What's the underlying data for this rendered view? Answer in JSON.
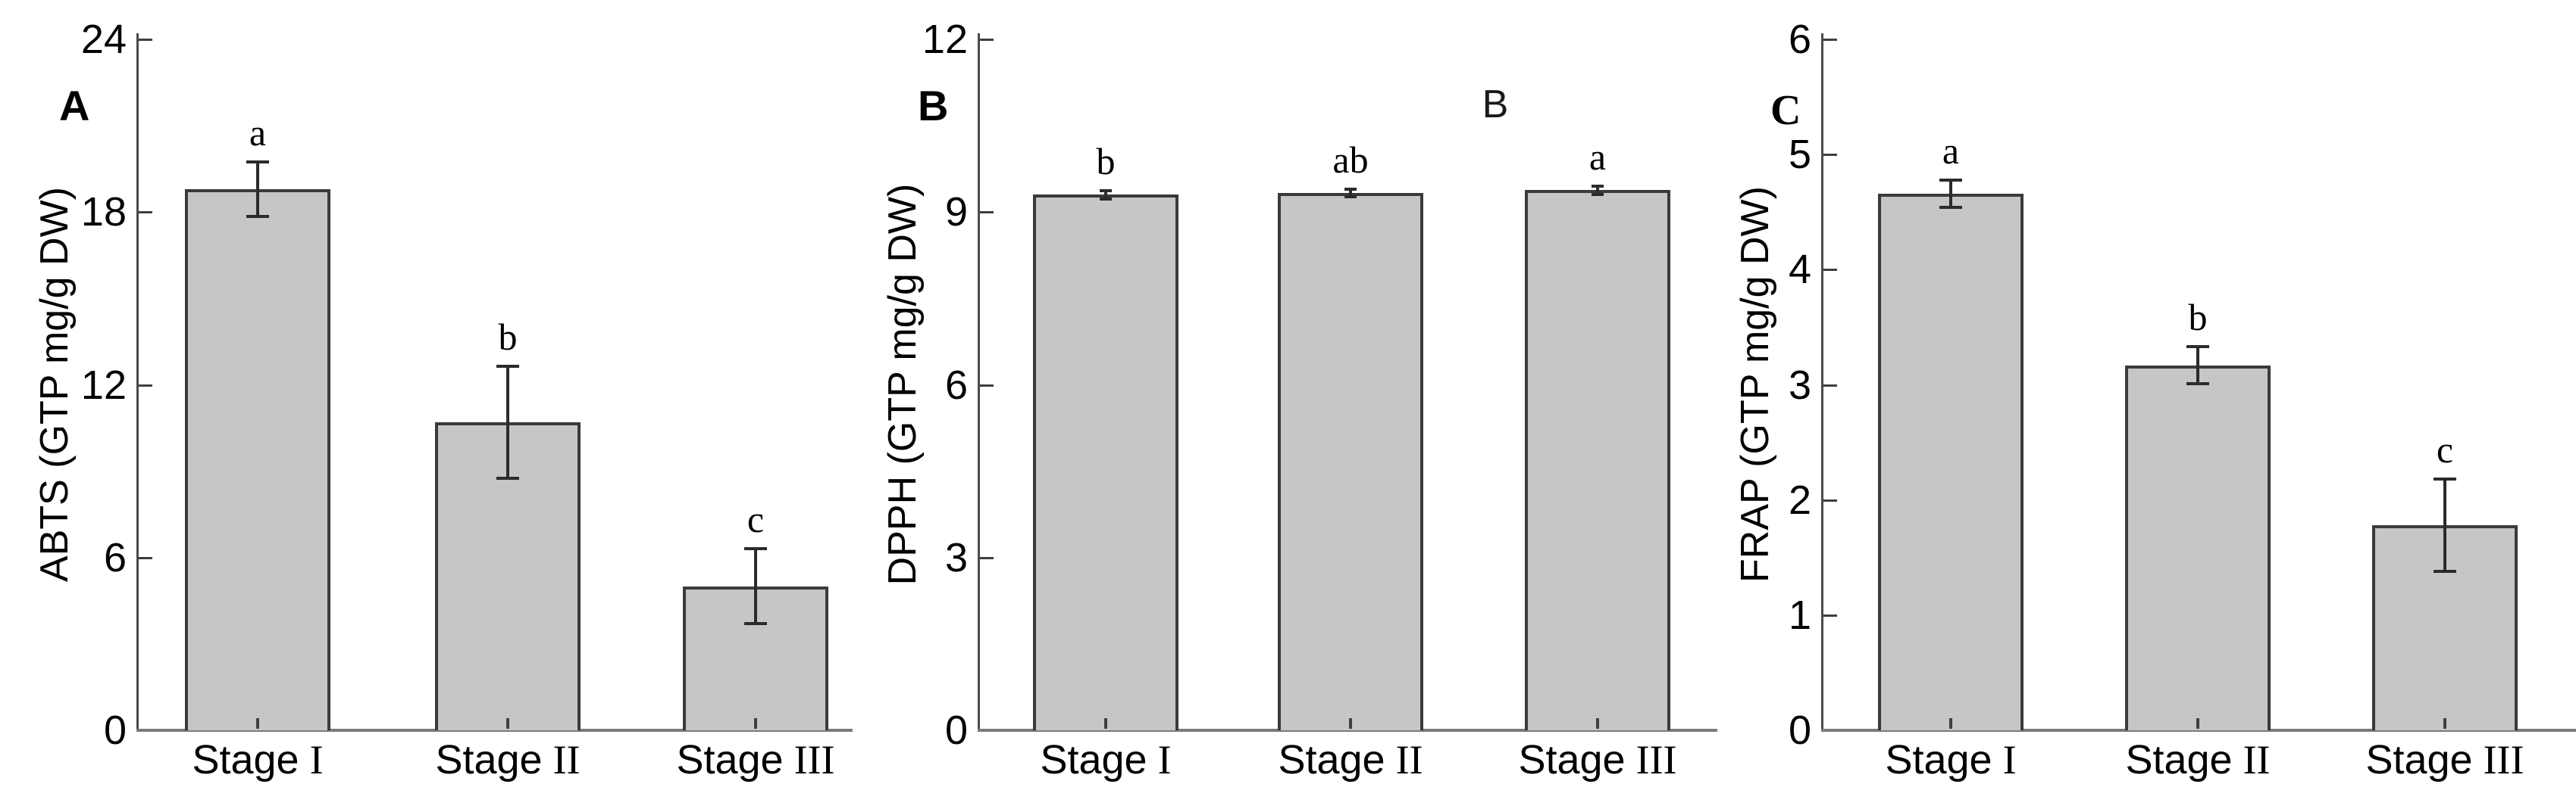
{
  "figure": {
    "background": "#ffffff",
    "bar_fill": "#c6c6c6",
    "bar_border": "#3a3a3a",
    "y_axis_color": "#4a4a4a",
    "baseline_color": "#7a7a7a",
    "error_bar_color": "#2b2b2b",
    "tick_color": "#3f3f3f",
    "text_color": "#000000"
  },
  "chart_data": [
    {
      "type": "bar",
      "panel_label": "A",
      "title": "",
      "xlabel": "",
      "ylabel": "ABTS (GTP mg/g DW)",
      "categories": [
        {
          "prefix": "Stage",
          "numeral": "I"
        },
        {
          "prefix": "Stage",
          "numeral": "II"
        },
        {
          "prefix": "Stage",
          "numeral": "III"
        }
      ],
      "values": [
        18.8,
        10.7,
        5.0
      ],
      "errors": [
        0.95,
        1.95,
        1.3
      ],
      "sig_letters": [
        "a",
        "b",
        "c"
      ],
      "ylim": [
        0,
        24
      ],
      "yticks": [
        0,
        6,
        12,
        18,
        24
      ],
      "grid": false,
      "legend": "none"
    },
    {
      "type": "bar",
      "panel_label": "B",
      "extra_annotation": "B",
      "title": "",
      "xlabel": "",
      "ylabel": "DPPH (GTP mg/g DW)",
      "categories": [
        {
          "prefix": "Stage",
          "numeral": "I"
        },
        {
          "prefix": "Stage",
          "numeral": "II"
        },
        {
          "prefix": "Stage",
          "numeral": "III"
        }
      ],
      "values": [
        9.3,
        9.33,
        9.38
      ],
      "errors": [
        0.07,
        0.07,
        0.07
      ],
      "sig_letters": [
        "b",
        "ab",
        "a"
      ],
      "ylim": [
        0,
        12
      ],
      "yticks": [
        0,
        3,
        6,
        9,
        12
      ],
      "grid": false,
      "legend": "none"
    },
    {
      "type": "bar",
      "panel_label": "C",
      "title": "",
      "xlabel": "",
      "ylabel": "FRAP (GTP mg/g DW)",
      "categories": [
        {
          "prefix": "Stage",
          "numeral": "I"
        },
        {
          "prefix": "Stage",
          "numeral": "II"
        },
        {
          "prefix": "Stage",
          "numeral": "III"
        }
      ],
      "values": [
        4.66,
        3.17,
        1.78
      ],
      "errors": [
        0.12,
        0.16,
        0.4
      ],
      "sig_letters": [
        "a",
        "b",
        "c"
      ],
      "ylim": [
        0,
        6
      ],
      "yticks": [
        0,
        1,
        2,
        3,
        4,
        5,
        6
      ],
      "grid": false,
      "legend": "none"
    }
  ]
}
